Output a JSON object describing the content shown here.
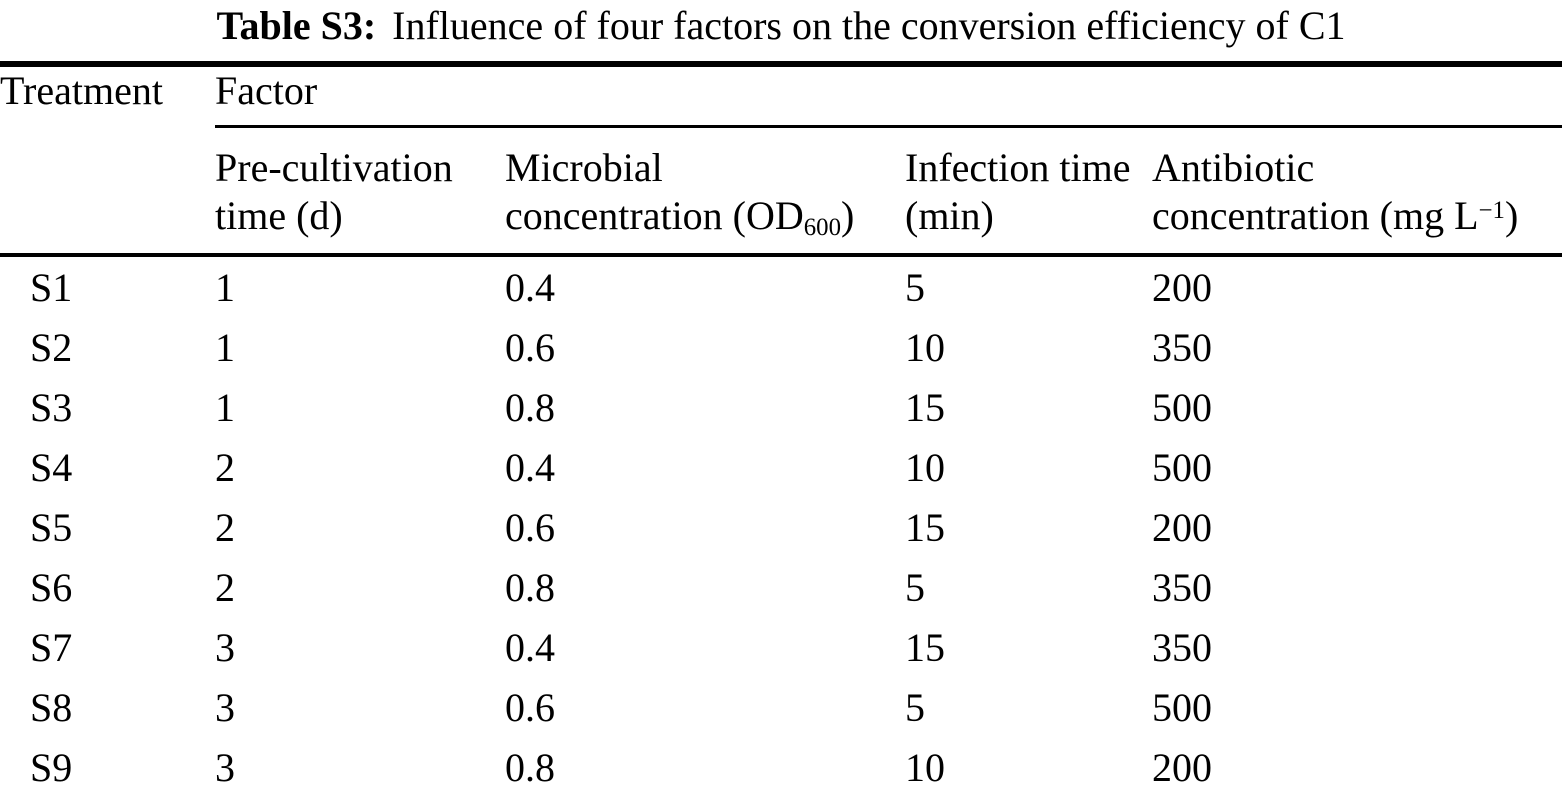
{
  "title": {
    "label": "Table S3:",
    "text": "Influence of four factors on the conversion efficiency of C1"
  },
  "table": {
    "row_header": "Treatment",
    "factor_header": "Factor",
    "columns": {
      "pre_cultivation": {
        "line1": "Pre-cultivation",
        "line2": "time (d)"
      },
      "microbial": {
        "line1": "Microbial",
        "line2_pre": "concentration (OD",
        "line2_sub": "600",
        "line2_post": ")"
      },
      "infection": {
        "line1": "Infection time",
        "line2": "(min)"
      },
      "antibiotic": {
        "line1": "Antibiotic",
        "line2_pre": "concentration (mg L",
        "line2_sup": "−1",
        "line2_post": ")"
      }
    },
    "rows": [
      {
        "treatment": "S1",
        "pre_cultivation_time_d": "1",
        "microbial_concentration_od600": "0.4",
        "infection_time_min": "5",
        "antibiotic_concentration_mg_l": "200"
      },
      {
        "treatment": "S2",
        "pre_cultivation_time_d": "1",
        "microbial_concentration_od600": "0.6",
        "infection_time_min": "10",
        "antibiotic_concentration_mg_l": "350"
      },
      {
        "treatment": "S3",
        "pre_cultivation_time_d": "1",
        "microbial_concentration_od600": "0.8",
        "infection_time_min": "15",
        "antibiotic_concentration_mg_l": "500"
      },
      {
        "treatment": "S4",
        "pre_cultivation_time_d": "2",
        "microbial_concentration_od600": "0.4",
        "infection_time_min": "10",
        "antibiotic_concentration_mg_l": "500"
      },
      {
        "treatment": "S5",
        "pre_cultivation_time_d": "2",
        "microbial_concentration_od600": "0.6",
        "infection_time_min": "15",
        "antibiotic_concentration_mg_l": "200"
      },
      {
        "treatment": "S6",
        "pre_cultivation_time_d": "2",
        "microbial_concentration_od600": "0.8",
        "infection_time_min": "5",
        "antibiotic_concentration_mg_l": "350"
      },
      {
        "treatment": "S7",
        "pre_cultivation_time_d": "3",
        "microbial_concentration_od600": "0.4",
        "infection_time_min": "15",
        "antibiotic_concentration_mg_l": "350"
      },
      {
        "treatment": "S8",
        "pre_cultivation_time_d": "3",
        "microbial_concentration_od600": "0.6",
        "infection_time_min": "5",
        "antibiotic_concentration_mg_l": "500"
      },
      {
        "treatment": "S9",
        "pre_cultivation_time_d": "3",
        "microbial_concentration_od600": "0.8",
        "infection_time_min": "10",
        "antibiotic_concentration_mg_l": "200"
      }
    ]
  },
  "colors": {
    "text": "#000000",
    "background": "#ffffff",
    "rule": "#000000"
  }
}
